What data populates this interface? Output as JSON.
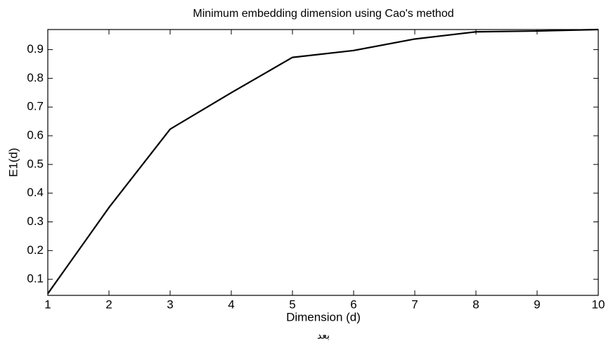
{
  "chart_data": {
    "type": "line",
    "title": "Minimum embedding dimension using Cao's method",
    "x_label": "Dimension (d)",
    "y_label": "E1(d)",
    "annotation": "بعد",
    "x": [
      1,
      2,
      3,
      4,
      5,
      6,
      7,
      8,
      9,
      10
    ],
    "values": [
      0.05,
      0.35,
      0.623,
      0.75,
      0.873,
      0.897,
      0.937,
      0.962,
      0.965,
      0.97
    ],
    "color": "#000000",
    "xlim": [
      1,
      10
    ],
    "xticks": [
      1,
      2,
      3,
      4,
      5,
      6,
      7,
      8,
      9,
      10
    ],
    "ylim": [
      0.044,
      0.97
    ],
    "yticks": [
      0.1,
      0.2,
      0.3,
      0.4,
      0.5,
      0.6,
      0.7,
      0.8,
      0.9
    ],
    "grid": false
  }
}
